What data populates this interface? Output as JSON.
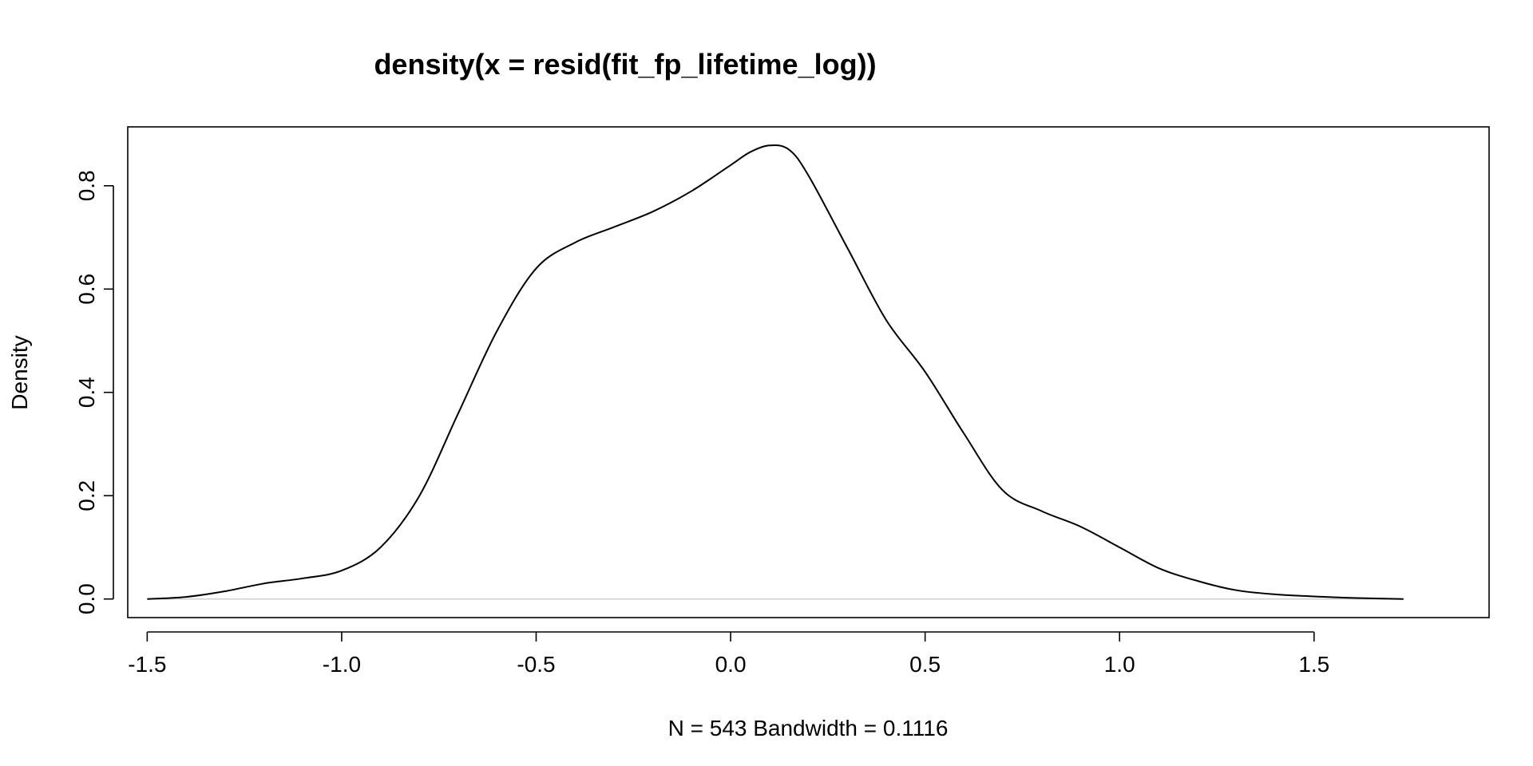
{
  "chart_data": {
    "type": "line",
    "title": "density(x = resid(fit_fp_lifetime_log))",
    "xlabel": "N = 543   Bandwidth = 0.1116",
    "ylabel": "Density",
    "xlim": [
      -1.55,
      1.95
    ],
    "ylim": [
      -0.036,
      0.914
    ],
    "x_ticks": [
      -1.5,
      -1.0,
      -0.5,
      0.0,
      0.5,
      1.0,
      1.5
    ],
    "x_tick_labels": [
      "-1.5",
      "-1.0",
      "-0.5",
      "0.0",
      "0.5",
      "1.0",
      "1.5"
    ],
    "y_ticks": [
      0.0,
      0.2,
      0.4,
      0.6,
      0.8
    ],
    "y_tick_labels": [
      "0.0",
      "0.2",
      "0.4",
      "0.6",
      "0.8"
    ],
    "grid": false,
    "legend": "none",
    "series": [
      {
        "x": [
          -1.5,
          -1.4,
          -1.3,
          -1.2,
          -1.1,
          -1.0,
          -0.9,
          -0.8,
          -0.7,
          -0.6,
          -0.5,
          -0.4,
          -0.3,
          -0.2,
          -0.1,
          0.0,
          0.05,
          0.1,
          0.15,
          0.2,
          0.3,
          0.4,
          0.5,
          0.6,
          0.7,
          0.8,
          0.9,
          1.0,
          1.1,
          1.2,
          1.3,
          1.4,
          1.5,
          1.6,
          1.73
        ],
        "y": [
          0.0,
          0.004,
          0.015,
          0.03,
          0.04,
          0.055,
          0.1,
          0.2,
          0.36,
          0.52,
          0.64,
          0.69,
          0.72,
          0.75,
          0.79,
          0.84,
          0.865,
          0.878,
          0.87,
          0.82,
          0.68,
          0.54,
          0.44,
          0.32,
          0.21,
          0.17,
          0.14,
          0.1,
          0.06,
          0.035,
          0.017,
          0.009,
          0.005,
          0.002,
          0.0
        ]
      }
    ]
  }
}
